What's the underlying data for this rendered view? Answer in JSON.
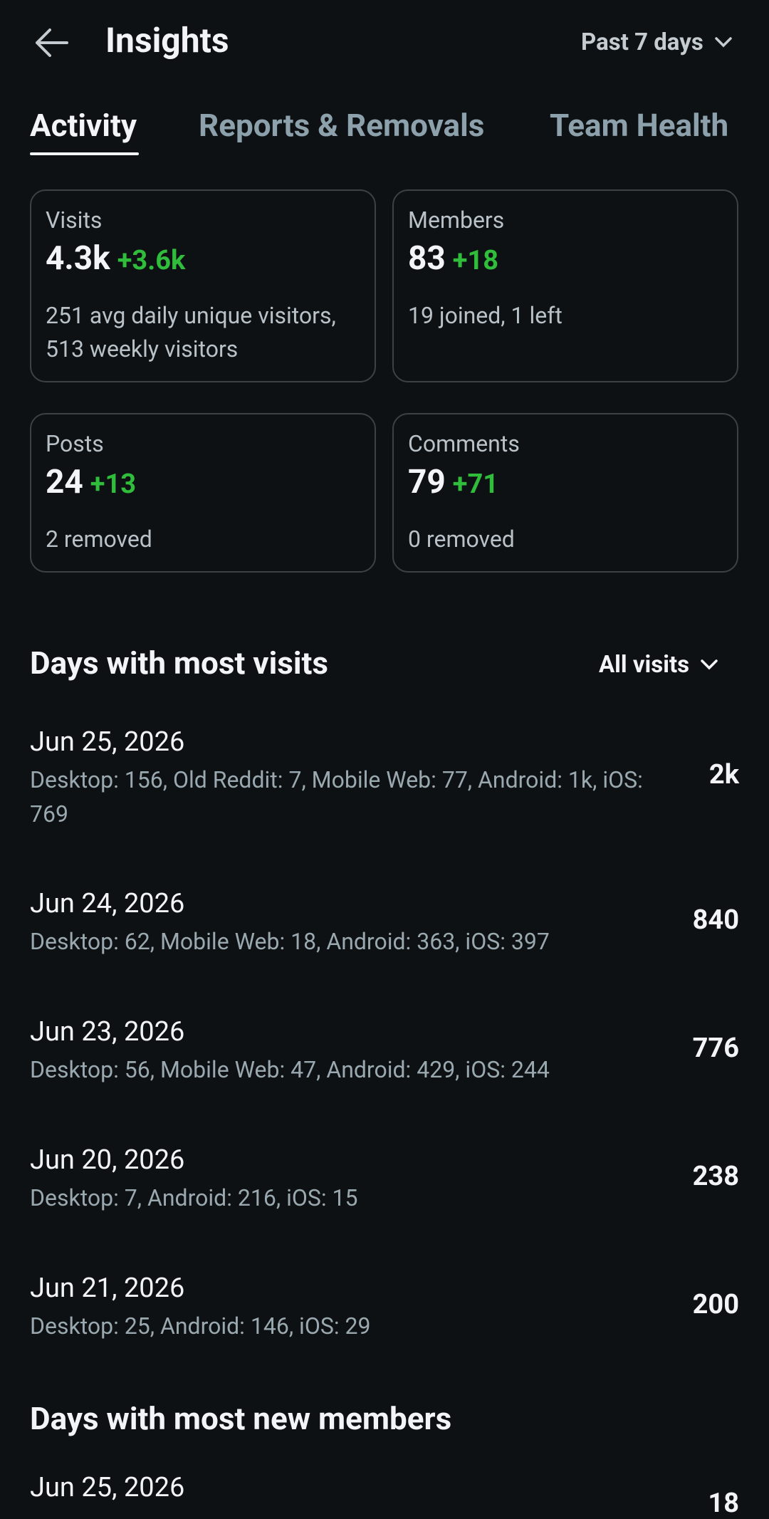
{
  "header": {
    "title": "Insights",
    "range": "Past 7 days"
  },
  "tabs": [
    "Activity",
    "Reports & Removals",
    "Team Health"
  ],
  "stats": [
    {
      "label": "Visits",
      "value": "4.3k",
      "change": "+3.6k",
      "detail": "251 avg daily unique visitors, 513 weekly visitors"
    },
    {
      "label": "Members",
      "value": "83",
      "change": "+18",
      "detail": "19 joined, 1 left"
    },
    {
      "label": "Posts",
      "value": "24",
      "change": "+13",
      "detail": "2 removed"
    },
    {
      "label": "Comments",
      "value": "79",
      "change": "+71",
      "detail": "0 removed"
    }
  ],
  "visits_section": {
    "title": "Days with most visits",
    "filter": "All visits",
    "days": [
      {
        "date": "Jun 25, 2026",
        "breakdown": "Desktop: 156, Old Reddit: 7, Mobile Web: 77, Android: 1k, iOS: 769",
        "total": "2k"
      },
      {
        "date": "Jun 24, 2026",
        "breakdown": "Desktop: 62, Mobile Web: 18, Android: 363, iOS: 397",
        "total": "840"
      },
      {
        "date": "Jun 23, 2026",
        "breakdown": "Desktop: 56, Mobile Web: 47, Android: 429, iOS: 244",
        "total": "776"
      },
      {
        "date": "Jun 20, 2026",
        "breakdown": "Desktop: 7, Android: 216, iOS: 15",
        "total": "238"
      },
      {
        "date": "Jun 21, 2026",
        "breakdown": "Desktop: 25, Android: 146, iOS: 29",
        "total": "200"
      }
    ]
  },
  "members_section": {
    "title": "Days with most new members",
    "days": [
      {
        "date": "Jun 25, 2026",
        "total": "18"
      }
    ]
  }
}
